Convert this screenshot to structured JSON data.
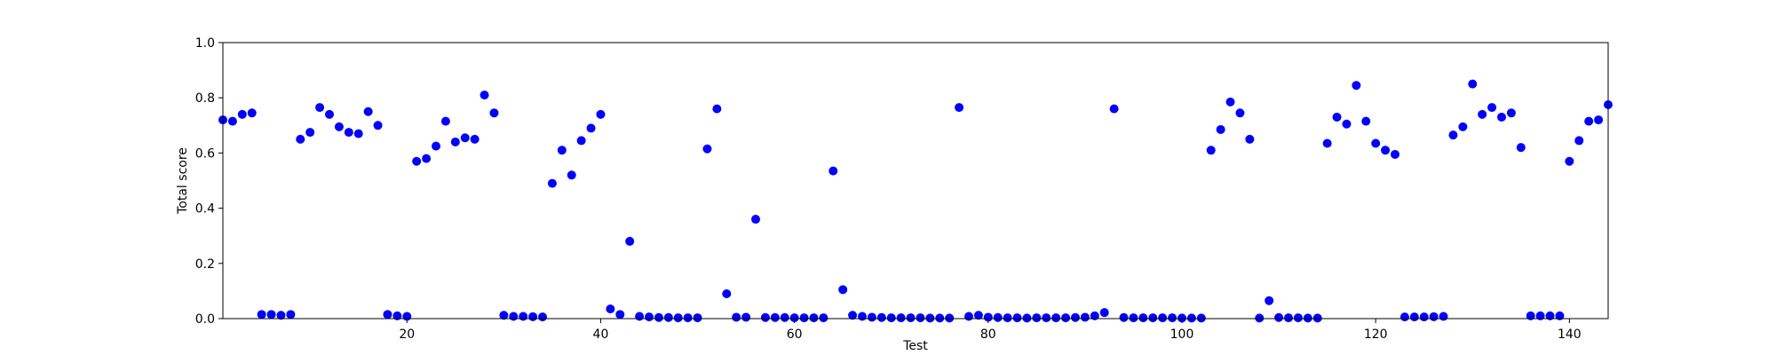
{
  "chart_data": {
    "type": "scatter",
    "title": "",
    "xlabel": "Test",
    "ylabel": "Total score",
    "xlim": [
      1,
      144
    ],
    "ylim": [
      0,
      1.0
    ],
    "xticks": [
      20,
      40,
      60,
      80,
      100,
      120,
      140
    ],
    "yticks": [
      0.0,
      0.2,
      0.4,
      0.6,
      0.8,
      1.0
    ],
    "ytick_labels": [
      "0.0",
      "0.2",
      "0.4",
      "0.6",
      "0.8",
      "1.0"
    ],
    "grid": false,
    "marker_color": "#0000ff",
    "series": [
      {
        "x": [
          1,
          2,
          3,
          4,
          5,
          6,
          7,
          8,
          9,
          10,
          11,
          12,
          13,
          14,
          15,
          16,
          17,
          18,
          19,
          20,
          21,
          22,
          23,
          24,
          25,
          26,
          27,
          28,
          29,
          30,
          31,
          32,
          33,
          34,
          35,
          36,
          37,
          38,
          39,
          40,
          41,
          42,
          43,
          44,
          45,
          46,
          47,
          48,
          49,
          50,
          51,
          52,
          53,
          54,
          55,
          56,
          57,
          58,
          59,
          60,
          61,
          62,
          63,
          64,
          65,
          66,
          67,
          68,
          69,
          70,
          71,
          72,
          73,
          74,
          75,
          76,
          77,
          78,
          79,
          80,
          81,
          82,
          83,
          84,
          85,
          86,
          87,
          88,
          89,
          90,
          91,
          92,
          93,
          94,
          95,
          96,
          97,
          98,
          99,
          100,
          101,
          102,
          103,
          104,
          105,
          106,
          107,
          108,
          109,
          110,
          111,
          112,
          113,
          114,
          115,
          116,
          117,
          118,
          119,
          120,
          121,
          122,
          123,
          124,
          125,
          126,
          127,
          128,
          129,
          130,
          131,
          132,
          133,
          134,
          135,
          136,
          137,
          138,
          139,
          140,
          141,
          142,
          143,
          144
        ],
        "y": [
          0.72,
          0.715,
          0.74,
          0.745,
          0.015,
          0.015,
          0.012,
          0.015,
          0.65,
          0.675,
          0.765,
          0.74,
          0.695,
          0.675,
          0.67,
          0.75,
          0.7,
          0.015,
          0.01,
          0.008,
          0.57,
          0.58,
          0.625,
          0.715,
          0.64,
          0.655,
          0.65,
          0.81,
          0.745,
          0.012,
          0.008,
          0.008,
          0.007,
          0.006,
          0.49,
          0.61,
          0.52,
          0.645,
          0.69,
          0.74,
          0.035,
          0.015,
          0.28,
          0.008,
          0.006,
          0.004,
          0.004,
          0.003,
          0.003,
          0.003,
          0.615,
          0.76,
          0.09,
          0.005,
          0.005,
          0.36,
          0.004,
          0.004,
          0.004,
          0.003,
          0.003,
          0.003,
          0.003,
          0.535,
          0.105,
          0.012,
          0.008,
          0.005,
          0.004,
          0.003,
          0.003,
          0.003,
          0.003,
          0.002,
          0.002,
          0.002,
          0.765,
          0.008,
          0.012,
          0.005,
          0.004,
          0.003,
          0.003,
          0.002,
          0.003,
          0.003,
          0.003,
          0.003,
          0.004,
          0.005,
          0.01,
          0.022,
          0.76,
          0.004,
          0.003,
          0.003,
          0.003,
          0.003,
          0.003,
          0.002,
          0.002,
          0.002,
          0.61,
          0.685,
          0.785,
          0.745,
          0.65,
          0.002,
          0.065,
          0.004,
          0.003,
          0.003,
          0.002,
          0.002,
          0.635,
          0.73,
          0.705,
          0.845,
          0.715,
          0.635,
          0.61,
          0.595,
          0.006,
          0.006,
          0.006,
          0.007,
          0.008,
          0.665,
          0.695,
          0.85,
          0.74,
          0.765,
          0.73,
          0.745,
          0.62,
          0.01,
          0.01,
          0.01,
          0.01,
          0.57,
          0.645,
          0.715,
          0.72,
          0.775
        ]
      }
    ]
  }
}
